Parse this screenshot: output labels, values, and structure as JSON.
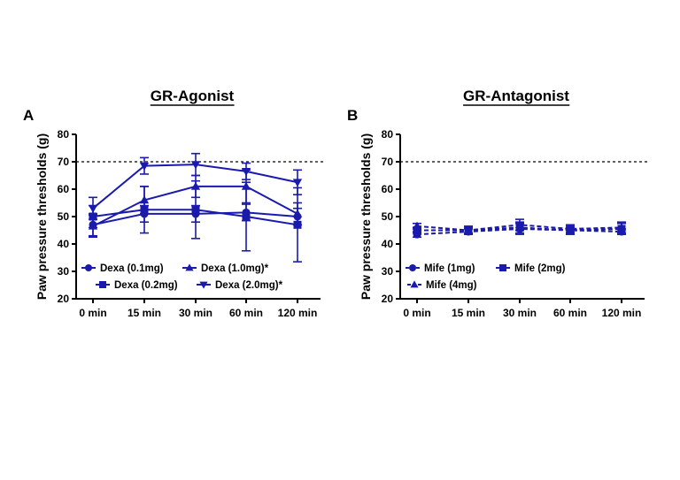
{
  "chart_data": [
    {
      "panel_label": "A",
      "title": "GR-Agonist",
      "type": "line",
      "ylabel": "Paw pressure thresholds (g)",
      "xlabel": "",
      "categories": [
        "0 min",
        "15 min",
        "30 min",
        "60 min",
        "120 min"
      ],
      "yticks": [
        "20",
        "30",
        "40",
        "50",
        "60",
        "70",
        "80"
      ],
      "ylim": [
        20,
        80
      ],
      "reference_line": 70,
      "color": "#1a1aad",
      "line_style": "solid",
      "series": [
        {
          "name": "Dexa (0.1mg)",
          "marker": "circle",
          "values": [
            47,
            51,
            51,
            51.5,
            50
          ],
          "errors": [
            4,
            3,
            3,
            3,
            3
          ]
        },
        {
          "name": "Dexa (0.2mg)",
          "marker": "square",
          "values": [
            50,
            52.5,
            52.5,
            50,
            47
          ],
          "errors": [
            4,
            8.5,
            10.5,
            12.5,
            13.5
          ]
        },
        {
          "name": "Dexa (1.0mg)*",
          "marker": "triangle-up",
          "values": [
            46.5,
            56,
            61,
            61,
            51
          ],
          "errors": [
            4,
            5,
            4,
            6,
            4
          ]
        },
        {
          "name": "Dexa (2.0mg)*",
          "marker": "triangle-down",
          "values": [
            53,
            68.5,
            69,
            66.5,
            62.5
          ],
          "errors": [
            4,
            3,
            4,
            3,
            4.5
          ]
        }
      ],
      "legend": [
        [
          {
            "name": "Dexa (0.1mg)",
            "marker": "circle"
          },
          {
            "name": "Dexa (1.0mg)*",
            "marker": "triangle-up"
          }
        ],
        [
          {
            "name": "Dexa (0.2mg)",
            "marker": "square"
          },
          {
            "name": "Dexa (2.0mg)*",
            "marker": "triangle-down"
          }
        ]
      ]
    },
    {
      "panel_label": "B",
      "title": "GR-Antagonist",
      "type": "line",
      "ylabel": "Paw pressure thresholds (g)",
      "xlabel": "",
      "categories": [
        "0 min",
        "15 min",
        "30 min",
        "60 min",
        "120 min"
      ],
      "yticks": [
        "20",
        "30",
        "40",
        "50",
        "60",
        "70",
        "80"
      ],
      "ylim": [
        20,
        80
      ],
      "reference_line": 70,
      "color": "#1a1aad",
      "line_style": "dashed",
      "series": [
        {
          "name": "Mife (1mg)",
          "marker": "circle",
          "values": [
            43.5,
            44.5,
            45.5,
            45,
            44.5
          ],
          "errors": [
            1,
            1,
            2,
            1,
            1
          ]
        },
        {
          "name": "Mife (2mg)",
          "marker": "square",
          "values": [
            45,
            45,
            46,
            45,
            45.5
          ],
          "errors": [
            1,
            1.5,
            2,
            1.5,
            2
          ]
        },
        {
          "name": "Mife (4mg)",
          "marker": "triangle-up",
          "values": [
            46.5,
            45,
            47,
            45.5,
            46
          ],
          "errors": [
            1,
            1,
            2,
            1.5,
            2
          ]
        }
      ],
      "legend": [
        [
          {
            "name": "Mife (1mg)",
            "marker": "circle"
          },
          {
            "name": "Mife (2mg)",
            "marker": "square"
          }
        ],
        [
          {
            "name": "Mife (4mg)",
            "marker": "triangle-up"
          }
        ]
      ]
    }
  ]
}
